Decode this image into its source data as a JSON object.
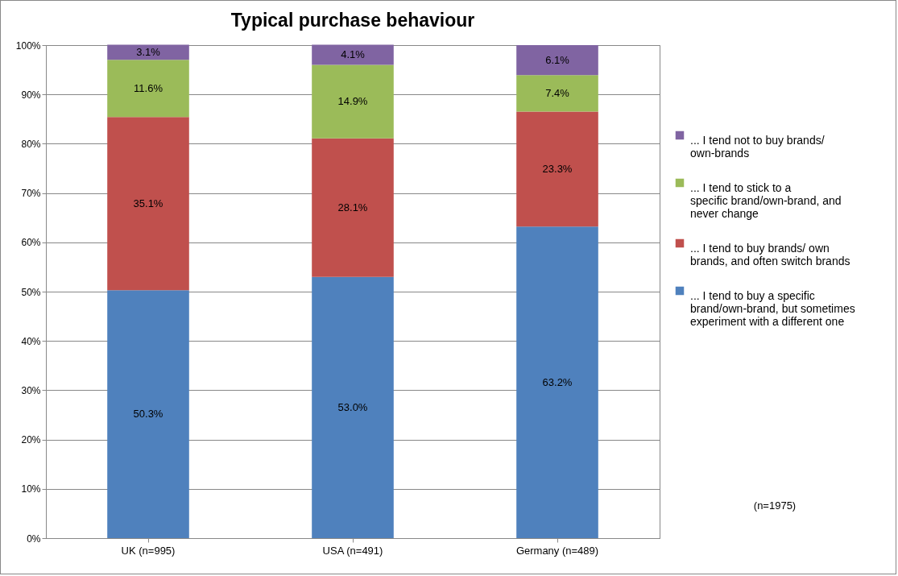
{
  "chart_data": {
    "type": "bar",
    "title": "Typical purchase behaviour",
    "stacked": true,
    "categories": [
      "UK (n=995)",
      "USA (n=491)",
      "Germany (n=489)"
    ],
    "series": [
      {
        "name": "... I tend to buy a specific brand/own-brand, but sometimes experiment with a different one",
        "color": "#4f81bd",
        "values": [
          50.3,
          53.0,
          63.2
        ],
        "value_labels": [
          "50.3%",
          "53.0%",
          "63.2%"
        ]
      },
      {
        "name": "... I tend to buy brands/ own brands, and often switch brands",
        "color": "#c0504d",
        "values": [
          35.1,
          28.1,
          23.3
        ],
        "value_labels": [
          "35.1%",
          "28.1%",
          "23.3%"
        ]
      },
      {
        "name": "... I tend to stick to a specific brand/own-brand, and never change",
        "color": "#9bbb59",
        "values": [
          11.6,
          14.9,
          7.4
        ],
        "value_labels": [
          "11.6%",
          "14.9%",
          "7.4%"
        ]
      },
      {
        "name": "... I tend not to buy brands/ own-brands",
        "color": "#8064a2",
        "values": [
          3.1,
          4.1,
          6.1
        ],
        "value_labels": [
          "3.1%",
          "4.1%",
          "6.1%"
        ]
      }
    ],
    "ylim": [
      0,
      100
    ],
    "yticks": [
      {
        "value": 0,
        "label": "0%"
      },
      {
        "value": 10,
        "label": "10%"
      },
      {
        "value": 20,
        "label": "20%"
      },
      {
        "value": 30,
        "label": "30%"
      },
      {
        "value": 40,
        "label": "40%"
      },
      {
        "value": 50,
        "label": "50%"
      },
      {
        "value": 60,
        "label": "60%"
      },
      {
        "value": 70,
        "label": "70%"
      },
      {
        "value": 80,
        "label": "80%"
      },
      {
        "value": 90,
        "label": "90%"
      },
      {
        "value": 100,
        "label": "100%"
      }
    ],
    "grid": "y",
    "legend": "right",
    "annotations": [
      "(n=1975)"
    ]
  }
}
